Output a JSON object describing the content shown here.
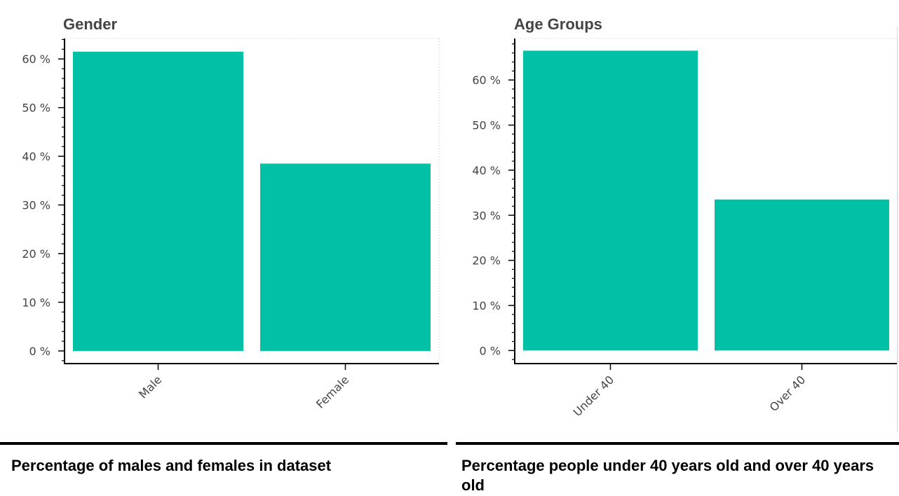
{
  "chart_data": [
    {
      "type": "bar",
      "title": "Gender",
      "categories": [
        "Male",
        "Female"
      ],
      "values": [
        61.5,
        38.5
      ],
      "ylim": [
        -2.6,
        64.2
      ],
      "yticks": [
        0,
        10,
        20,
        30,
        40,
        50,
        60
      ],
      "tick_suffix": " %",
      "xlabel": "",
      "ylabel": "",
      "color": "#00c0a6",
      "grid": false,
      "caption": "Percentage of males and females in dataset"
    },
    {
      "type": "bar",
      "title": "Age Groups",
      "categories": [
        "Under 40",
        "Over 40"
      ],
      "values": [
        66.5,
        33.5
      ],
      "ylim": [
        -2.9,
        69.2
      ],
      "yticks": [
        0,
        10,
        20,
        30,
        40,
        50,
        60
      ],
      "tick_suffix": " %",
      "xlabel": "",
      "ylabel": "",
      "color": "#00c0a6",
      "grid": false,
      "caption": "Percentage people under 40 years old and over 40 years old"
    }
  ]
}
